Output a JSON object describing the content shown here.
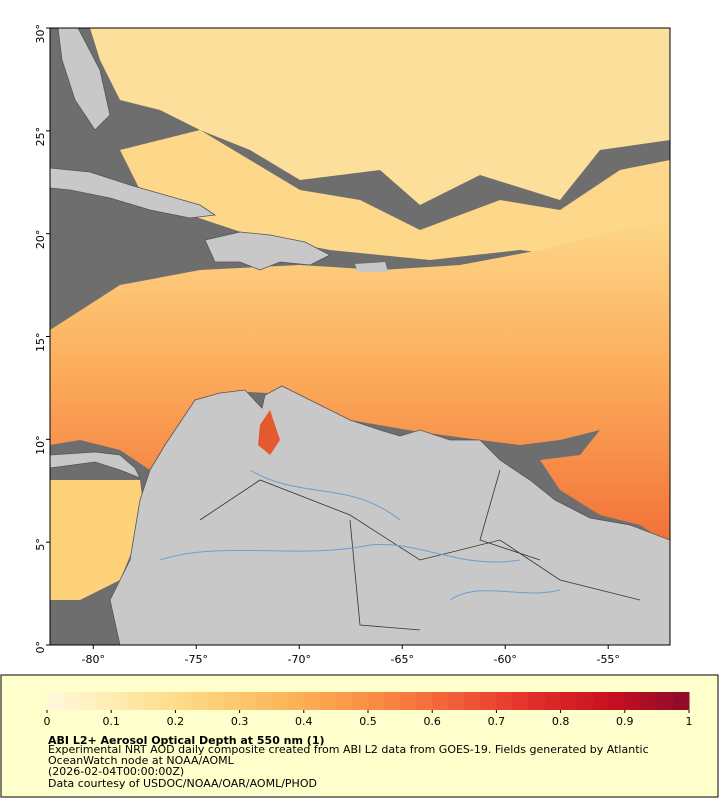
{
  "chart_data": {
    "type": "map",
    "xlim": [
      -82.1,
      -52.0
    ],
    "ylim": [
      0,
      30
    ],
    "xticks": [
      {
        "value": -80,
        "label": "-80°"
      },
      {
        "value": -75,
        "label": "-75°"
      },
      {
        "value": -70,
        "label": "-70°"
      },
      {
        "value": -65,
        "label": "-65°"
      },
      {
        "value": -60,
        "label": "-60°"
      },
      {
        "value": -55,
        "label": "-55°"
      }
    ],
    "yticks": [
      {
        "value": 0,
        "label": "0°"
      },
      {
        "value": 5,
        "label": "5°"
      },
      {
        "value": 10,
        "label": "10°"
      },
      {
        "value": 15,
        "label": "15°"
      },
      {
        "value": 20,
        "label": "20°"
      },
      {
        "value": 25,
        "label": "25°"
      },
      {
        "value": 30,
        "label": "30°"
      }
    ],
    "colorbar": {
      "lim": [
        0,
        1
      ],
      "ticks": [
        0,
        0.1,
        0.2,
        0.3,
        0.4,
        0.5,
        0.6,
        0.7,
        0.8,
        0.9,
        1
      ],
      "colors": [
        "#fff8dc",
        "#ffe9a8",
        "#fdd27a",
        "#fcb55a",
        "#fb8f44",
        "#f4623a",
        "#e3302c",
        "#c81020",
        "#8e0a2a"
      ]
    },
    "title": "ABI L2+ Aerosol Optical Depth at 550 nm (1)",
    "description_lines": [
      "Experimental NRT AOD daily composite created from ABI L2 data from GOES-19. Fields generated by Atlantic",
      "OceanWatch node at NOAA/AOML",
      "(2026-02-04T00:00:00Z)"
    ],
    "credit": "Data courtesy of USDOC/NOAA/OAR/AOML/PHOD"
  }
}
